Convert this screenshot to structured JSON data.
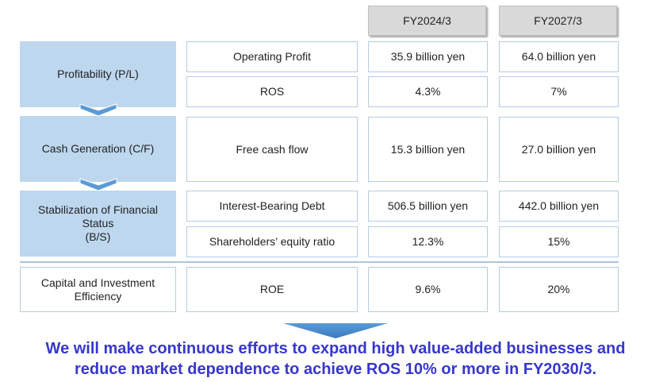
{
  "headers": [
    "FY2024/3",
    "FY2027/3"
  ],
  "categories": {
    "profitability": "Profitability  (P/L)",
    "cash": "Cash Generation (C/F)",
    "stabilization": "Stabilization of Financial Status\n(B/S)",
    "capital": "Capital and Investment Efficiency"
  },
  "rows": [
    {
      "label": "Operating Profit",
      "fy2024": "35.9 billion yen",
      "fy2027": "64.0 billion yen"
    },
    {
      "label": "ROS",
      "fy2024": "4.3%",
      "fy2027": "7%"
    },
    {
      "label": "Free cash flow",
      "fy2024": "15.3 billion yen",
      "fy2027": "27.0 billion yen"
    },
    {
      "label": "Interest-Bearing Debt",
      "fy2024": "506.5 billion yen",
      "fy2027": "442.0 billion yen"
    },
    {
      "label": "Shareholders’ equity ratio",
      "fy2024": "12.3%",
      "fy2027": "15%"
    },
    {
      "label": "ROE",
      "fy2024": "9.6%",
      "fy2027": "20%"
    }
  ],
  "summary": {
    "line1": "We will make continuous efforts to expand high value-added businesses and",
    "line2": "reduce market dependence to achieve ROS 10% or more in FY2030/3."
  },
  "colors": {
    "category_fill": "#bdd7ee",
    "chevron": "#5b9bd5",
    "summary_text": "#3737cc"
  }
}
